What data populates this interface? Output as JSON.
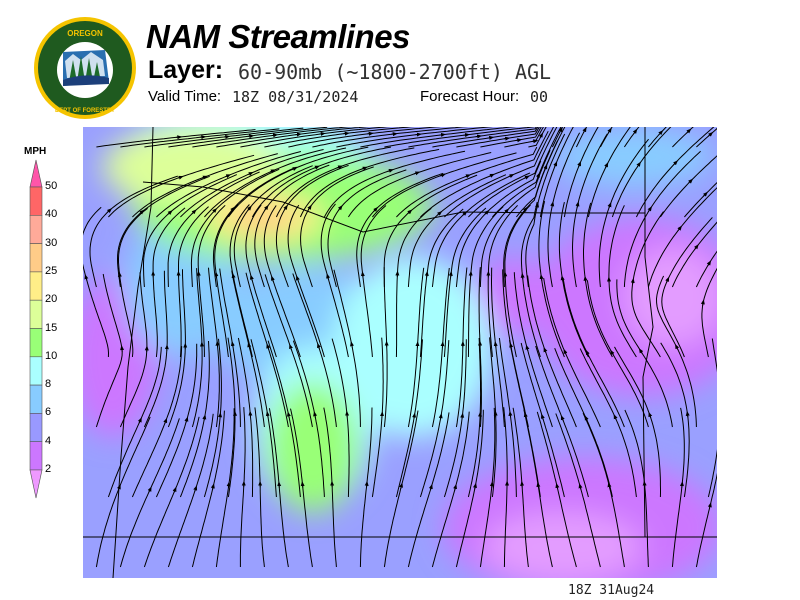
{
  "logo": {
    "text_top": "OREGON",
    "text_ring": "DEPARTMENT OF FORESTRY"
  },
  "header": {
    "title": "NAM Streamlines",
    "layer_label": "Layer:",
    "layer_value": "60-90mb (~1800-2700ft) AGL",
    "valid_label": "Valid Time:",
    "valid_value": "18Z 08/31/2024",
    "forecast_label": "Forecast Hour:",
    "forecast_value": "00"
  },
  "legend": {
    "units": "MPH",
    "ticks": [
      "50",
      "40",
      "30",
      "25",
      "20",
      "15",
      "10",
      "8",
      "6",
      "4",
      "2"
    ],
    "colors": [
      "#ff6666",
      "#ffaa99",
      "#ffcc88",
      "#ffee88",
      "#ddff99",
      "#99ff77",
      "#aaffff",
      "#88ccff",
      "#9999ff",
      "#cc77ff"
    ],
    "over_color": "#ff55aa",
    "under_color": "#ee99ff"
  },
  "footer": {
    "timestamp": "18Z 31Aug24"
  }
}
